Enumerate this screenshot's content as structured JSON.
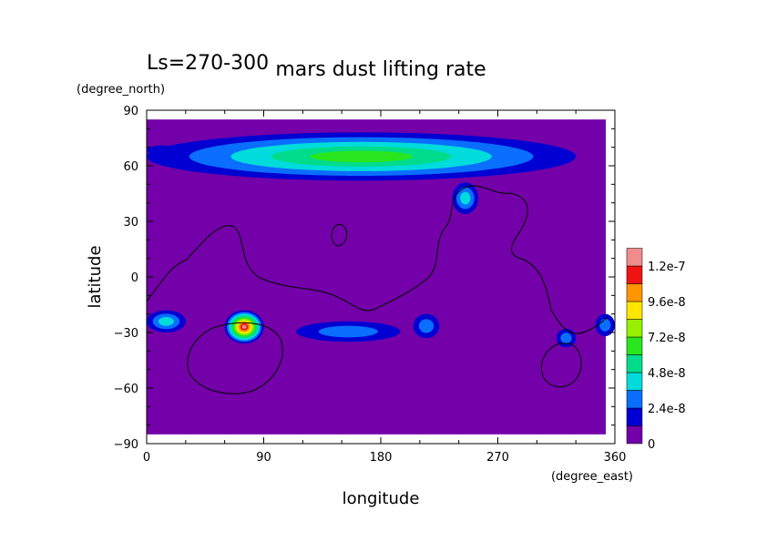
{
  "chart_data": {
    "type": "heatmap",
    "title": "mars dust lifting rate",
    "subtitle": "Ls=270-300",
    "xlabel": "longitude",
    "ylabel": "latitude",
    "xunit": "(degree_east)",
    "yunit": "(degree_north)",
    "xlim": [
      0,
      360
    ],
    "ylim": [
      -90,
      90
    ],
    "xticks": [
      "0",
      "90",
      "180",
      "270",
      "360"
    ],
    "yticks": [
      "90",
      "60",
      "30",
      "0",
      "−30",
      "−60",
      "−90"
    ],
    "colorbar": {
      "levels": [
        0,
        1.2e-08,
        2.4e-08,
        3.6e-08,
        4.8e-08,
        6e-08,
        7.2e-08,
        8.4e-08,
        9.6e-08,
        1.08e-07,
        1.2e-07,
        1.32e-07
      ],
      "labels": [
        "0",
        "2.4e-8",
        "4.8e-8",
        "7.2e-8",
        "9.6e-8",
        "1.2e-7"
      ],
      "colors": [
        "#7300a8",
        "#0000d2",
        "#0a6eff",
        "#00dcdc",
        "#00dc8c",
        "#2ae61e",
        "#96f000",
        "#ffe600",
        "#ff9600",
        "#f01414",
        "#f08c8c"
      ]
    },
    "data_extent": {
      "lon": [
        0,
        353
      ],
      "lat": [
        -85,
        85
      ]
    },
    "features": [
      {
        "name": "north polar band",
        "lon": [
          0,
          330
        ],
        "lat": [
          52,
          78
        ],
        "peak": 7e-08
      },
      {
        "name": "north cap west patch",
        "lon": [
          0,
          25
        ],
        "lat": [
          66,
          71
        ],
        "peak": 1.5e-08
      },
      {
        "name": "hellas rim",
        "lon": [
          60,
          90
        ],
        "lat": [
          -36,
          -18
        ],
        "peak": 1.2e-07
      },
      {
        "name": "southern band",
        "lon": [
          115,
          195
        ],
        "lat": [
          -35,
          -24
        ],
        "peak": 3e-08
      },
      {
        "name": "south west edge",
        "lon": [
          0,
          30
        ],
        "lat": [
          -30,
          -18
        ],
        "peak": 4.5e-08
      },
      {
        "name": "south patch 215",
        "lon": [
          205,
          225
        ],
        "lat": [
          -33,
          -20
        ],
        "peak": 3.5e-08
      },
      {
        "name": "tharsis north patch",
        "lon": [
          235,
          255
        ],
        "lat": [
          34,
          51
        ],
        "peak": 4.5e-08
      },
      {
        "name": "south patch 320",
        "lon": [
          315,
          330
        ],
        "lat": [
          -38,
          -28
        ],
        "peak": 2.8e-08
      },
      {
        "name": "south east edge",
        "lon": [
          345,
          360
        ],
        "lat": [
          -32,
          -20
        ],
        "peak": 3.5e-08
      }
    ]
  }
}
